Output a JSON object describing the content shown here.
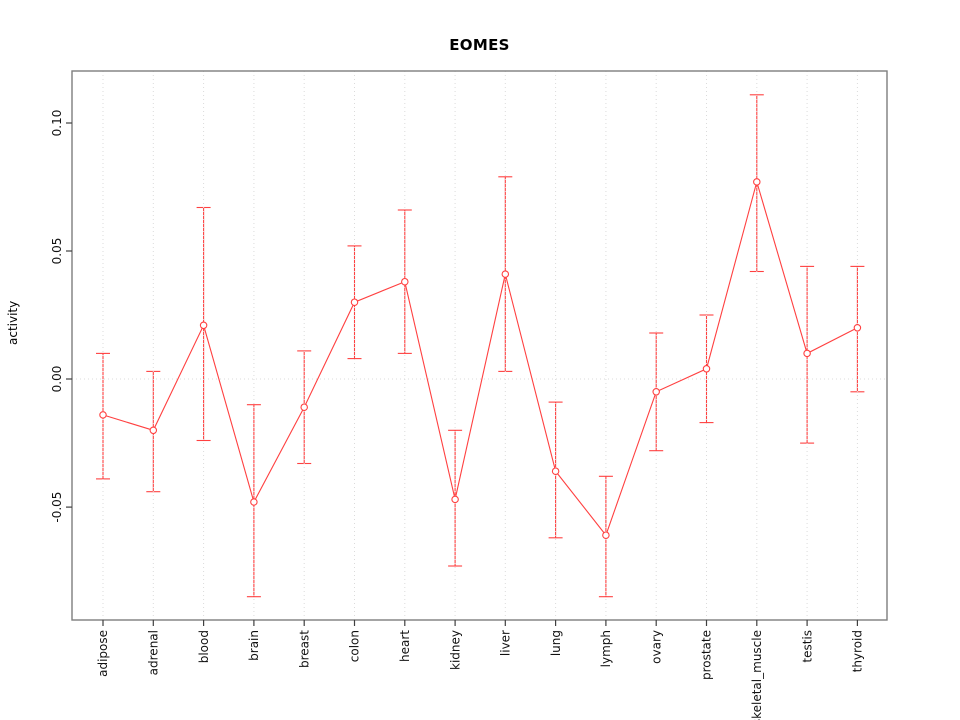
{
  "page": {
    "background": "#FFFFFF"
  },
  "chart_data": {
    "type": "line",
    "title": "EOMES",
    "xlabel": "",
    "ylabel": "activity",
    "categories": [
      "adipose",
      "adrenal",
      "blood",
      "brain",
      "breast",
      "colon",
      "heart",
      "kidney",
      "liver",
      "lung",
      "lymph",
      "ovary",
      "prostate",
      "skeletal_muscle",
      "testis",
      "thyroid"
    ],
    "series": [
      {
        "name": "activity",
        "values": [
          -0.014,
          -0.02,
          0.021,
          -0.048,
          -0.011,
          0.03,
          0.038,
          -0.047,
          0.041,
          -0.036,
          -0.061,
          -0.005,
          0.004,
          0.077,
          0.01,
          0.02
        ],
        "upper": [
          0.01,
          0.003,
          0.067,
          -0.01,
          0.011,
          0.052,
          0.066,
          -0.02,
          0.079,
          -0.009,
          -0.038,
          0.018,
          0.025,
          0.111,
          0.044,
          0.044
        ],
        "lower": [
          -0.039,
          -0.044,
          -0.024,
          -0.085,
          -0.033,
          0.008,
          0.01,
          -0.073,
          0.003,
          -0.062,
          -0.085,
          -0.028,
          -0.017,
          0.042,
          -0.025,
          -0.005
        ]
      }
    ],
    "y_ticks": {
      "values": [
        -0.05,
        0.0,
        0.05,
        0.1
      ],
      "labels": [
        "-0.05",
        "0.00",
        "0.05",
        "0.10"
      ]
    },
    "ylim": [
      -0.0941,
      0.1203
    ],
    "grid": "dotted vertical gridline at each category; dotted horizontal line at y=0",
    "legend": "none",
    "marker": "open-circle",
    "error_bars": true,
    "colors": {
      "series": "#FF4040",
      "grid": "#DBDBDB",
      "border": "#7E7E7E",
      "tick": "#3F3F3F",
      "text": "#000000"
    }
  }
}
